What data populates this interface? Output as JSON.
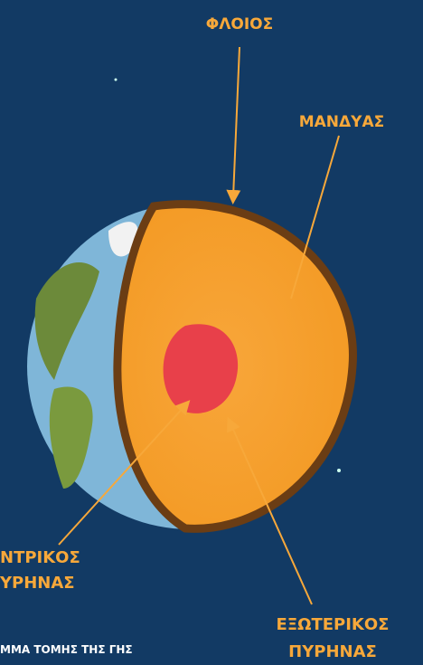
{
  "labels": {
    "crust": "ΦΛΟΙΟΣ",
    "mantle": "ΜΑΝΔΥΑΣ",
    "inner_core": [
      "ΝΤΡΙΚΟΣ",
      "ΥΡΗΝΑΣ"
    ],
    "outer_core": [
      "ΕΞΩΤΕΡΙΚΟΣ",
      "ΠΥΡΗΝΑΣ"
    ],
    "caption": "ΜΜΑ ΤΟΜΗΣ ΤΗΣ ΓΗΣ"
  }
}
